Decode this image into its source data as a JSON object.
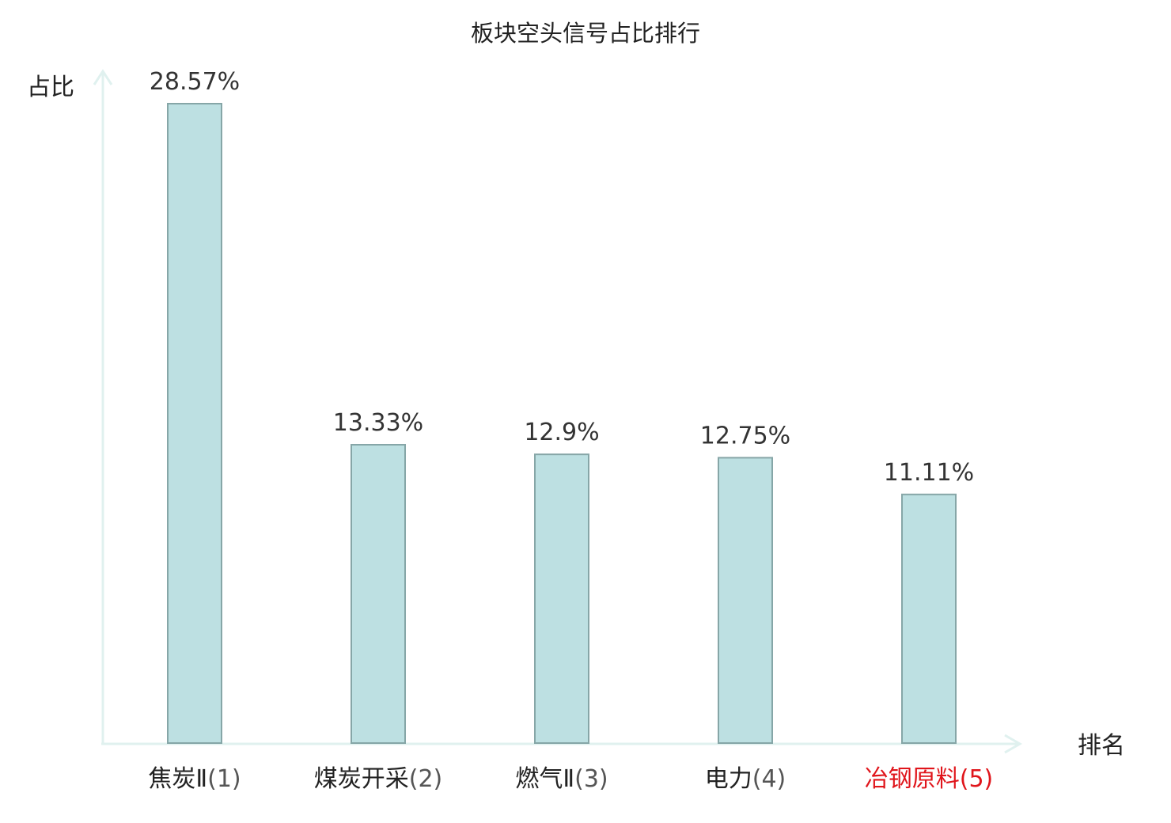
{
  "chart_data": {
    "type": "bar",
    "title": "板块空头信号占比排行",
    "ylabel": "占比",
    "xlabel": "排名",
    "categories": [
      {
        "name": "焦炭Ⅱ",
        "rank": "(1)",
        "value": 28.57,
        "label": "28.57%",
        "highlight": false
      },
      {
        "name": "煤炭开采",
        "rank": "(2)",
        "value": 13.33,
        "label": "13.33%",
        "highlight": false
      },
      {
        "name": "燃气Ⅱ",
        "rank": "(3)",
        "value": 12.9,
        "label": "12.9%",
        "highlight": false
      },
      {
        "name": "电力",
        "rank": "(4)",
        "value": 12.75,
        "label": "12.75%",
        "highlight": false
      },
      {
        "name": "冶钢原料",
        "rank": "(5)",
        "value": 11.11,
        "label": "11.11%",
        "highlight": true
      }
    ],
    "ylim": [
      0,
      28.57
    ],
    "grid": false,
    "colors": {
      "bar_fill": "#bde0e2",
      "bar_stroke": "#86a6a7",
      "axis": "#e0f1ef",
      "text": "#222222",
      "rank_text": "#555555",
      "highlight_text": "#e0151b"
    }
  }
}
